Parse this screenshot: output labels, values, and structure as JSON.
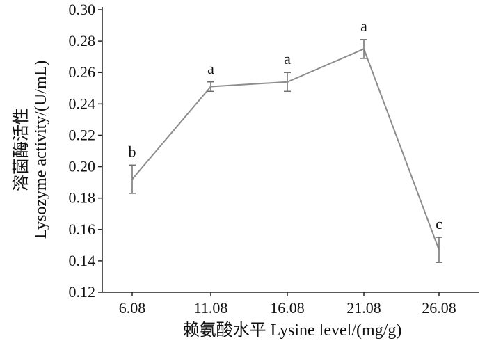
{
  "chart_data": {
    "type": "line",
    "categories": [
      "6.08",
      "11.08",
      "16.08",
      "21.08",
      "26.08"
    ],
    "series": [
      {
        "values": [
          0.192,
          0.251,
          0.254,
          0.275,
          0.147
        ],
        "error": [
          0.009,
          0.003,
          0.006,
          0.006,
          0.008
        ],
        "significance": [
          "b",
          "a",
          "a",
          "a",
          "c"
        ]
      }
    ],
    "ylim": [
      0.12,
      0.3
    ],
    "yticks": [
      "0.12",
      "0.14",
      "0.16",
      "0.18",
      "0.20",
      "0.22",
      "0.24",
      "0.26",
      "0.28",
      "0.30"
    ],
    "xlabel": "赖氨酸水平  Lysine level/(mg/g)",
    "ylabel_cn": "溶菌酶活性",
    "ylabel_en": "Lysozyme activity/(U/mL)",
    "line_color": "#8c8c8c"
  }
}
